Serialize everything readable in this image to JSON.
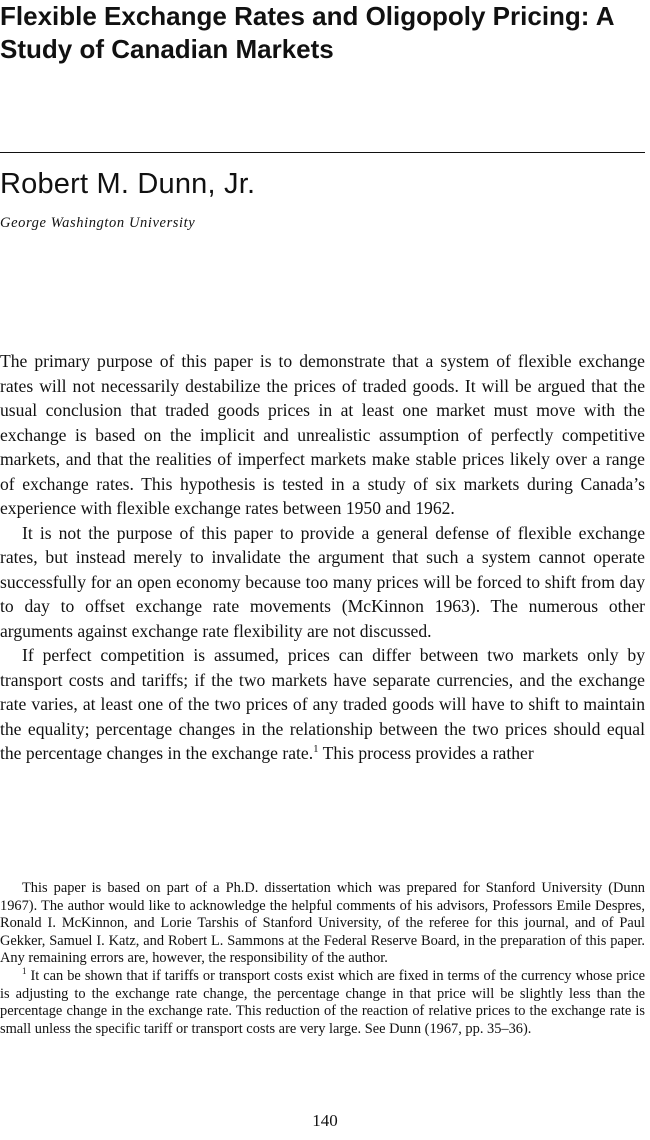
{
  "article": {
    "title": "Flexible Exchange Rates and Oligopoly Pricing: A Study of Canadian Markets",
    "author": "Robert M. Dunn, Jr.",
    "affiliation": "George Washington University"
  },
  "body": {
    "paragraphs": [
      "The primary purpose of this paper is to demonstrate that a system of flexible exchange rates will not necessarily destabilize the prices of traded goods. It will be argued that the usual conclusion that traded goods prices in at least one market must move with the exchange is based on the implicit and unrealistic assumption of perfectly competitive markets, and that the realities of imperfect markets make stable prices likely over a range of exchange rates. This hypothesis is tested in a study of six markets during Canada’s experience with flexible exchange rates between 1950 and 1962.",
      "It is not the purpose of this paper to provide a general defense of flexible exchange rates, but instead merely to invalidate the argument that such a system cannot operate successfully for an open economy because too many prices will be forced to shift from day to day to offset exchange rate movements (McKinnon 1963). The numerous other arguments against exchange rate flexibility are not discussed."
    ],
    "paragraph3_before_note": "If perfect competition is assumed, prices can differ between two markets only by transport costs and tariffs; if the two markets have separate currencies, and the exchange rate varies, at least one of the two prices of any traded goods will have to shift to maintain the equality; percentage changes in the relationship between the two prices should equal the percentage changes in the exchange rate.",
    "paragraph3_note_ref": "1",
    "paragraph3_after_note": " This process provides a rather"
  },
  "notes": {
    "acknowledgment": "This paper is based on part of a Ph.D. dissertation which was prepared for Stanford University (Dunn 1967). The author would like to acknowledge the helpful comments of his advisors, Professors Emile Despres, Ronald I. McKinnon, and Lorie Tarshis of Stanford University, of the referee for this journal, and of Paul Gekker, Samuel I. Katz, and Robert L. Sammons at the Federal Reserve Board, in the preparation of this paper. Any remaining errors are, however, the responsibility of the author.",
    "footnote1_marker": "1",
    "footnote1_text": " It can be shown that if tariffs or transport costs exist which are fixed in terms of the currency whose price is adjusting to the exchange rate change, the percentage change in that price will be slightly less than the percentage change in the exchange rate. This reduction of the reaction of relative prices to the exchange rate is small unless the specific tariff or transport costs are very large. See Dunn (1967, pp. 35–36)."
  },
  "page_number": "140"
}
